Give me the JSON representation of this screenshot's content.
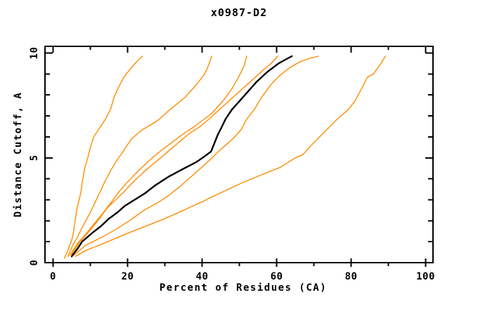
{
  "chart_data": {
    "type": "line",
    "title": "x0987-D2",
    "xlabel": "Percent of Residues (CA)",
    "ylabel": "Distance Cutoff, A",
    "xlim": [
      0,
      100
    ],
    "ylim": [
      0,
      10
    ],
    "x_major_ticks": [
      0,
      20,
      40,
      60,
      80,
      100
    ],
    "x_minor_ticks": [
      10,
      30,
      50,
      70,
      90
    ],
    "y_major_ticks": [
      0,
      5,
      10
    ],
    "y_minor_ticks": [
      1,
      2,
      3,
      4,
      6,
      7,
      8,
      9
    ],
    "grid": false,
    "legend": "none",
    "colors": {
      "other_models": "#ff8c00",
      "highlighted_model": "#000000",
      "axis": "#000000"
    },
    "series": [
      {
        "name": "orange-curve-1",
        "color": "#ff8c00",
        "width": 1.4,
        "points": [
          [
            3.0,
            0.2
          ],
          [
            3.8,
            0.5
          ],
          [
            4.6,
            0.9
          ],
          [
            5.2,
            1.2
          ],
          [
            5.6,
            1.6
          ],
          [
            5.9,
            2.0
          ],
          [
            6.5,
            2.65
          ],
          [
            7.0,
            3.0
          ],
          [
            7.4,
            3.3
          ],
          [
            7.9,
            3.9
          ],
          [
            8.5,
            4.5
          ],
          [
            9.3,
            5.0
          ],
          [
            10.0,
            5.5
          ],
          [
            10.9,
            6.0
          ],
          [
            12.2,
            6.35
          ],
          [
            13.9,
            6.8
          ],
          [
            15.4,
            7.3
          ],
          [
            16.4,
            7.9
          ],
          [
            17.4,
            8.3
          ],
          [
            19.0,
            8.85
          ],
          [
            21.0,
            9.3
          ],
          [
            22.5,
            9.6
          ],
          [
            24.0,
            9.85
          ]
        ]
      },
      {
        "name": "orange-curve-2",
        "color": "#ff8c00",
        "width": 1.4,
        "points": [
          [
            4.0,
            0.3
          ],
          [
            5.2,
            0.8
          ],
          [
            6.5,
            1.2
          ],
          [
            7.6,
            1.6
          ],
          [
            8.8,
            2.0
          ],
          [
            10.0,
            2.4
          ],
          [
            11.2,
            2.85
          ],
          [
            12.4,
            3.3
          ],
          [
            14.0,
            3.9
          ],
          [
            15.5,
            4.4
          ],
          [
            17.0,
            4.85
          ],
          [
            18.8,
            5.3
          ],
          [
            21.0,
            5.9
          ],
          [
            24.0,
            6.35
          ],
          [
            26.5,
            6.6
          ],
          [
            28.6,
            6.85
          ],
          [
            31.0,
            7.25
          ],
          [
            33.5,
            7.6
          ],
          [
            35.5,
            7.9
          ],
          [
            37.0,
            8.2
          ],
          [
            38.5,
            8.5
          ],
          [
            40.5,
            8.95
          ],
          [
            41.5,
            9.3
          ],
          [
            42.6,
            9.85
          ]
        ]
      },
      {
        "name": "orange-curve-3",
        "color": "#ff8c00",
        "width": 1.4,
        "points": [
          [
            4.5,
            0.35
          ],
          [
            6.5,
            0.9
          ],
          [
            8.5,
            1.3
          ],
          [
            11.0,
            1.85
          ],
          [
            13.5,
            2.4
          ],
          [
            15.5,
            2.85
          ],
          [
            17.3,
            3.3
          ],
          [
            20.0,
            3.85
          ],
          [
            23.0,
            4.4
          ],
          [
            26.0,
            4.9
          ],
          [
            29.0,
            5.35
          ],
          [
            32.0,
            5.75
          ],
          [
            35.0,
            6.15
          ],
          [
            38.0,
            6.5
          ],
          [
            40.6,
            6.85
          ],
          [
            42.5,
            7.1
          ],
          [
            44.5,
            7.5
          ],
          [
            46.0,
            7.8
          ],
          [
            48.0,
            8.3
          ],
          [
            49.5,
            8.75
          ],
          [
            50.5,
            9.1
          ],
          [
            51.3,
            9.4
          ],
          [
            52.0,
            9.85
          ]
        ]
      },
      {
        "name": "orange-curve-4",
        "color": "#ff8c00",
        "width": 1.4,
        "points": [
          [
            5.0,
            0.4
          ],
          [
            7.0,
            0.95
          ],
          [
            9.5,
            1.45
          ],
          [
            12.0,
            2.0
          ],
          [
            14.5,
            2.6
          ],
          [
            16.8,
            3.0
          ],
          [
            18.9,
            3.35
          ],
          [
            21.5,
            3.85
          ],
          [
            24.5,
            4.35
          ],
          [
            27.5,
            4.8
          ],
          [
            30.5,
            5.25
          ],
          [
            33.5,
            5.7
          ],
          [
            36.5,
            6.15
          ],
          [
            39.5,
            6.5
          ],
          [
            41.9,
            6.85
          ],
          [
            44.0,
            7.2
          ],
          [
            46.5,
            7.6
          ],
          [
            49.0,
            8.0
          ],
          [
            51.5,
            8.4
          ],
          [
            54.0,
            8.8
          ],
          [
            56.5,
            9.2
          ],
          [
            58.5,
            9.5
          ],
          [
            60.3,
            9.85
          ]
        ]
      },
      {
        "name": "orange-curve-5",
        "color": "#ff8c00",
        "width": 1.4,
        "points": [
          [
            5.5,
            0.35
          ],
          [
            7.2,
            0.6
          ],
          [
            9.0,
            0.85
          ],
          [
            11.2,
            1.05
          ],
          [
            13.5,
            1.25
          ],
          [
            17.0,
            1.6
          ],
          [
            20.5,
            2.0
          ],
          [
            24.4,
            2.5
          ],
          [
            28.0,
            2.85
          ],
          [
            31.0,
            3.2
          ],
          [
            34.5,
            3.7
          ],
          [
            38.0,
            4.25
          ],
          [
            41.5,
            4.8
          ],
          [
            45.0,
            5.4
          ],
          [
            48.5,
            5.95
          ],
          [
            50.5,
            6.35
          ],
          [
            52.0,
            6.85
          ],
          [
            54.0,
            7.3
          ],
          [
            56.0,
            7.9
          ],
          [
            58.5,
            8.5
          ],
          [
            61.0,
            8.95
          ],
          [
            63.5,
            9.3
          ],
          [
            66.5,
            9.6
          ],
          [
            69.0,
            9.75
          ],
          [
            71.2,
            9.85
          ]
        ]
      },
      {
        "name": "orange-curve-6",
        "color": "#ff8c00",
        "width": 1.4,
        "points": [
          [
            6.0,
            0.3
          ],
          [
            9.0,
            0.6
          ],
          [
            12.0,
            0.8
          ],
          [
            16.0,
            1.1
          ],
          [
            20.0,
            1.4
          ],
          [
            25.0,
            1.75
          ],
          [
            30.0,
            2.1
          ],
          [
            35.0,
            2.5
          ],
          [
            40.0,
            2.9
          ],
          [
            44.6,
            3.3
          ],
          [
            50.0,
            3.75
          ],
          [
            54.0,
            4.05
          ],
          [
            57.5,
            4.3
          ],
          [
            61.0,
            4.55
          ],
          [
            65.0,
            5.0
          ],
          [
            67.0,
            5.15
          ],
          [
            68.8,
            5.5
          ],
          [
            70.7,
            5.85
          ],
          [
            73.5,
            6.35
          ],
          [
            76.3,
            6.85
          ],
          [
            79.2,
            7.3
          ],
          [
            81.0,
            7.7
          ],
          [
            82.5,
            8.2
          ],
          [
            84.4,
            8.85
          ],
          [
            86.0,
            9.0
          ],
          [
            88.0,
            9.5
          ],
          [
            89.2,
            9.85
          ]
        ]
      },
      {
        "name": "black-curve-target-model",
        "color": "#000000",
        "width": 2.4,
        "points": [
          [
            5.0,
            0.3
          ],
          [
            6.5,
            0.65
          ],
          [
            7.8,
            1.0
          ],
          [
            10.4,
            1.4
          ],
          [
            12.9,
            1.75
          ],
          [
            15.0,
            2.1
          ],
          [
            17.3,
            2.4
          ],
          [
            19.2,
            2.7
          ],
          [
            21.0,
            2.9
          ],
          [
            22.8,
            3.1
          ],
          [
            24.6,
            3.3
          ],
          [
            27.5,
            3.7
          ],
          [
            31.0,
            4.1
          ],
          [
            35.2,
            4.5
          ],
          [
            38.5,
            4.8
          ],
          [
            40.5,
            5.05
          ],
          [
            42.4,
            5.3
          ],
          [
            43.3,
            5.7
          ],
          [
            44.2,
            6.1
          ],
          [
            45.2,
            6.45
          ],
          [
            46.3,
            6.85
          ],
          [
            48.0,
            7.3
          ],
          [
            50.0,
            7.7
          ],
          [
            52.0,
            8.1
          ],
          [
            54.5,
            8.6
          ],
          [
            57.5,
            9.1
          ],
          [
            60.5,
            9.5
          ],
          [
            62.5,
            9.7
          ],
          [
            64.1,
            9.85
          ]
        ]
      }
    ]
  }
}
